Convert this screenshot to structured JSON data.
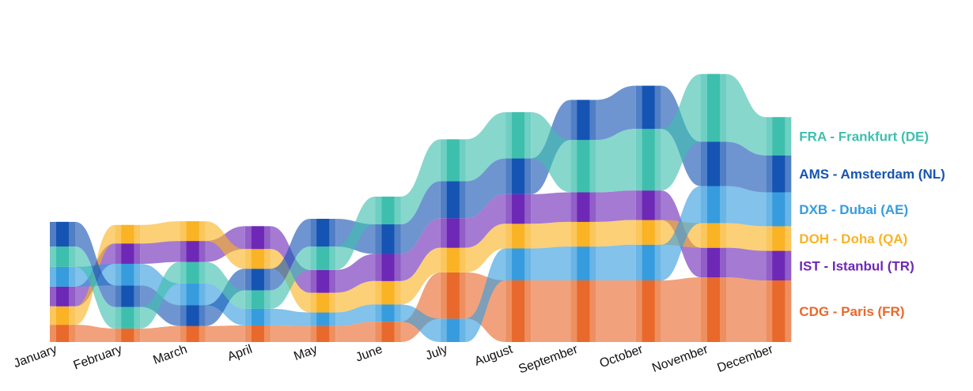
{
  "chart_data": {
    "type": "ribbon-rank",
    "categories": [
      "January",
      "February",
      "March",
      "April",
      "May",
      "June",
      "July",
      "August",
      "September",
      "October",
      "November",
      "December"
    ],
    "series": [
      {
        "key": "CDG",
        "name": "CDG - Paris (FR)",
        "color": "#E8692B",
        "values": [
          28,
          22,
          26,
          27,
          26,
          33,
          75,
          100,
          100,
          100,
          105,
          100
        ]
      },
      {
        "key": "IST",
        "name": "IST - Istanbul (TR)",
        "color": "#6E28B6",
        "values": [
          32,
          33,
          34,
          37,
          37,
          44,
          48,
          48,
          48,
          48,
          48,
          48
        ]
      },
      {
        "key": "DOH",
        "name": "DOH - Doha (QA)",
        "color": "#F9B324",
        "values": [
          30,
          30,
          32,
          32,
          32,
          38,
          40,
          40,
          40,
          40,
          40,
          40
        ]
      },
      {
        "key": "DXB",
        "name": "DXB - Dubai (AE)",
        "color": "#369CDE",
        "values": [
          32,
          35,
          35,
          27,
          22,
          28,
          38,
          52,
          55,
          58,
          60,
          55
        ]
      },
      {
        "key": "AMS",
        "name": "AMS - Amsterdam (NL)",
        "color": "#1654B3",
        "values": [
          40,
          35,
          34,
          35,
          45,
          48,
          60,
          58,
          65,
          70,
          72,
          60
        ]
      },
      {
        "key": "FRA",
        "name": "FRA - Frankfurt (DE)",
        "color": "#3EBFAE",
        "values": [
          33,
          35,
          35,
          30,
          38,
          45,
          68,
          75,
          85,
          100,
          110,
          62
        ]
      }
    ],
    "order_bottom_to_top": [
      [
        "CDG",
        "DOH",
        "IST",
        "DXB",
        "FRA",
        "AMS"
      ],
      [
        "CDG",
        "FRA",
        "AMS",
        "DXB",
        "IST",
        "DOH"
      ],
      [
        "CDG",
        "AMS",
        "DXB",
        "FRA",
        "IST",
        "DOH"
      ],
      [
        "CDG",
        "DXB",
        "FRA",
        "AMS",
        "DOH",
        "IST"
      ],
      [
        "CDG",
        "DXB",
        "DOH",
        "IST",
        "FRA",
        "AMS"
      ],
      [
        "CDG",
        "DXB",
        "DOH",
        "IST",
        "AMS",
        "FRA"
      ],
      [
        "DXB",
        "CDG",
        "DOH",
        "IST",
        "AMS",
        "FRA"
      ],
      [
        "CDG",
        "DXB",
        "DOH",
        "IST",
        "AMS",
        "FRA"
      ],
      [
        "CDG",
        "DXB",
        "DOH",
        "IST",
        "FRA",
        "AMS"
      ],
      [
        "CDG",
        "DXB",
        "DOH",
        "IST",
        "FRA",
        "AMS"
      ],
      [
        "CDG",
        "IST",
        "DOH",
        "DXB",
        "AMS",
        "FRA"
      ],
      [
        "CDG",
        "IST",
        "DOH",
        "DXB",
        "AMS",
        "FRA"
      ]
    ],
    "legend_position": "right",
    "grid": false
  }
}
